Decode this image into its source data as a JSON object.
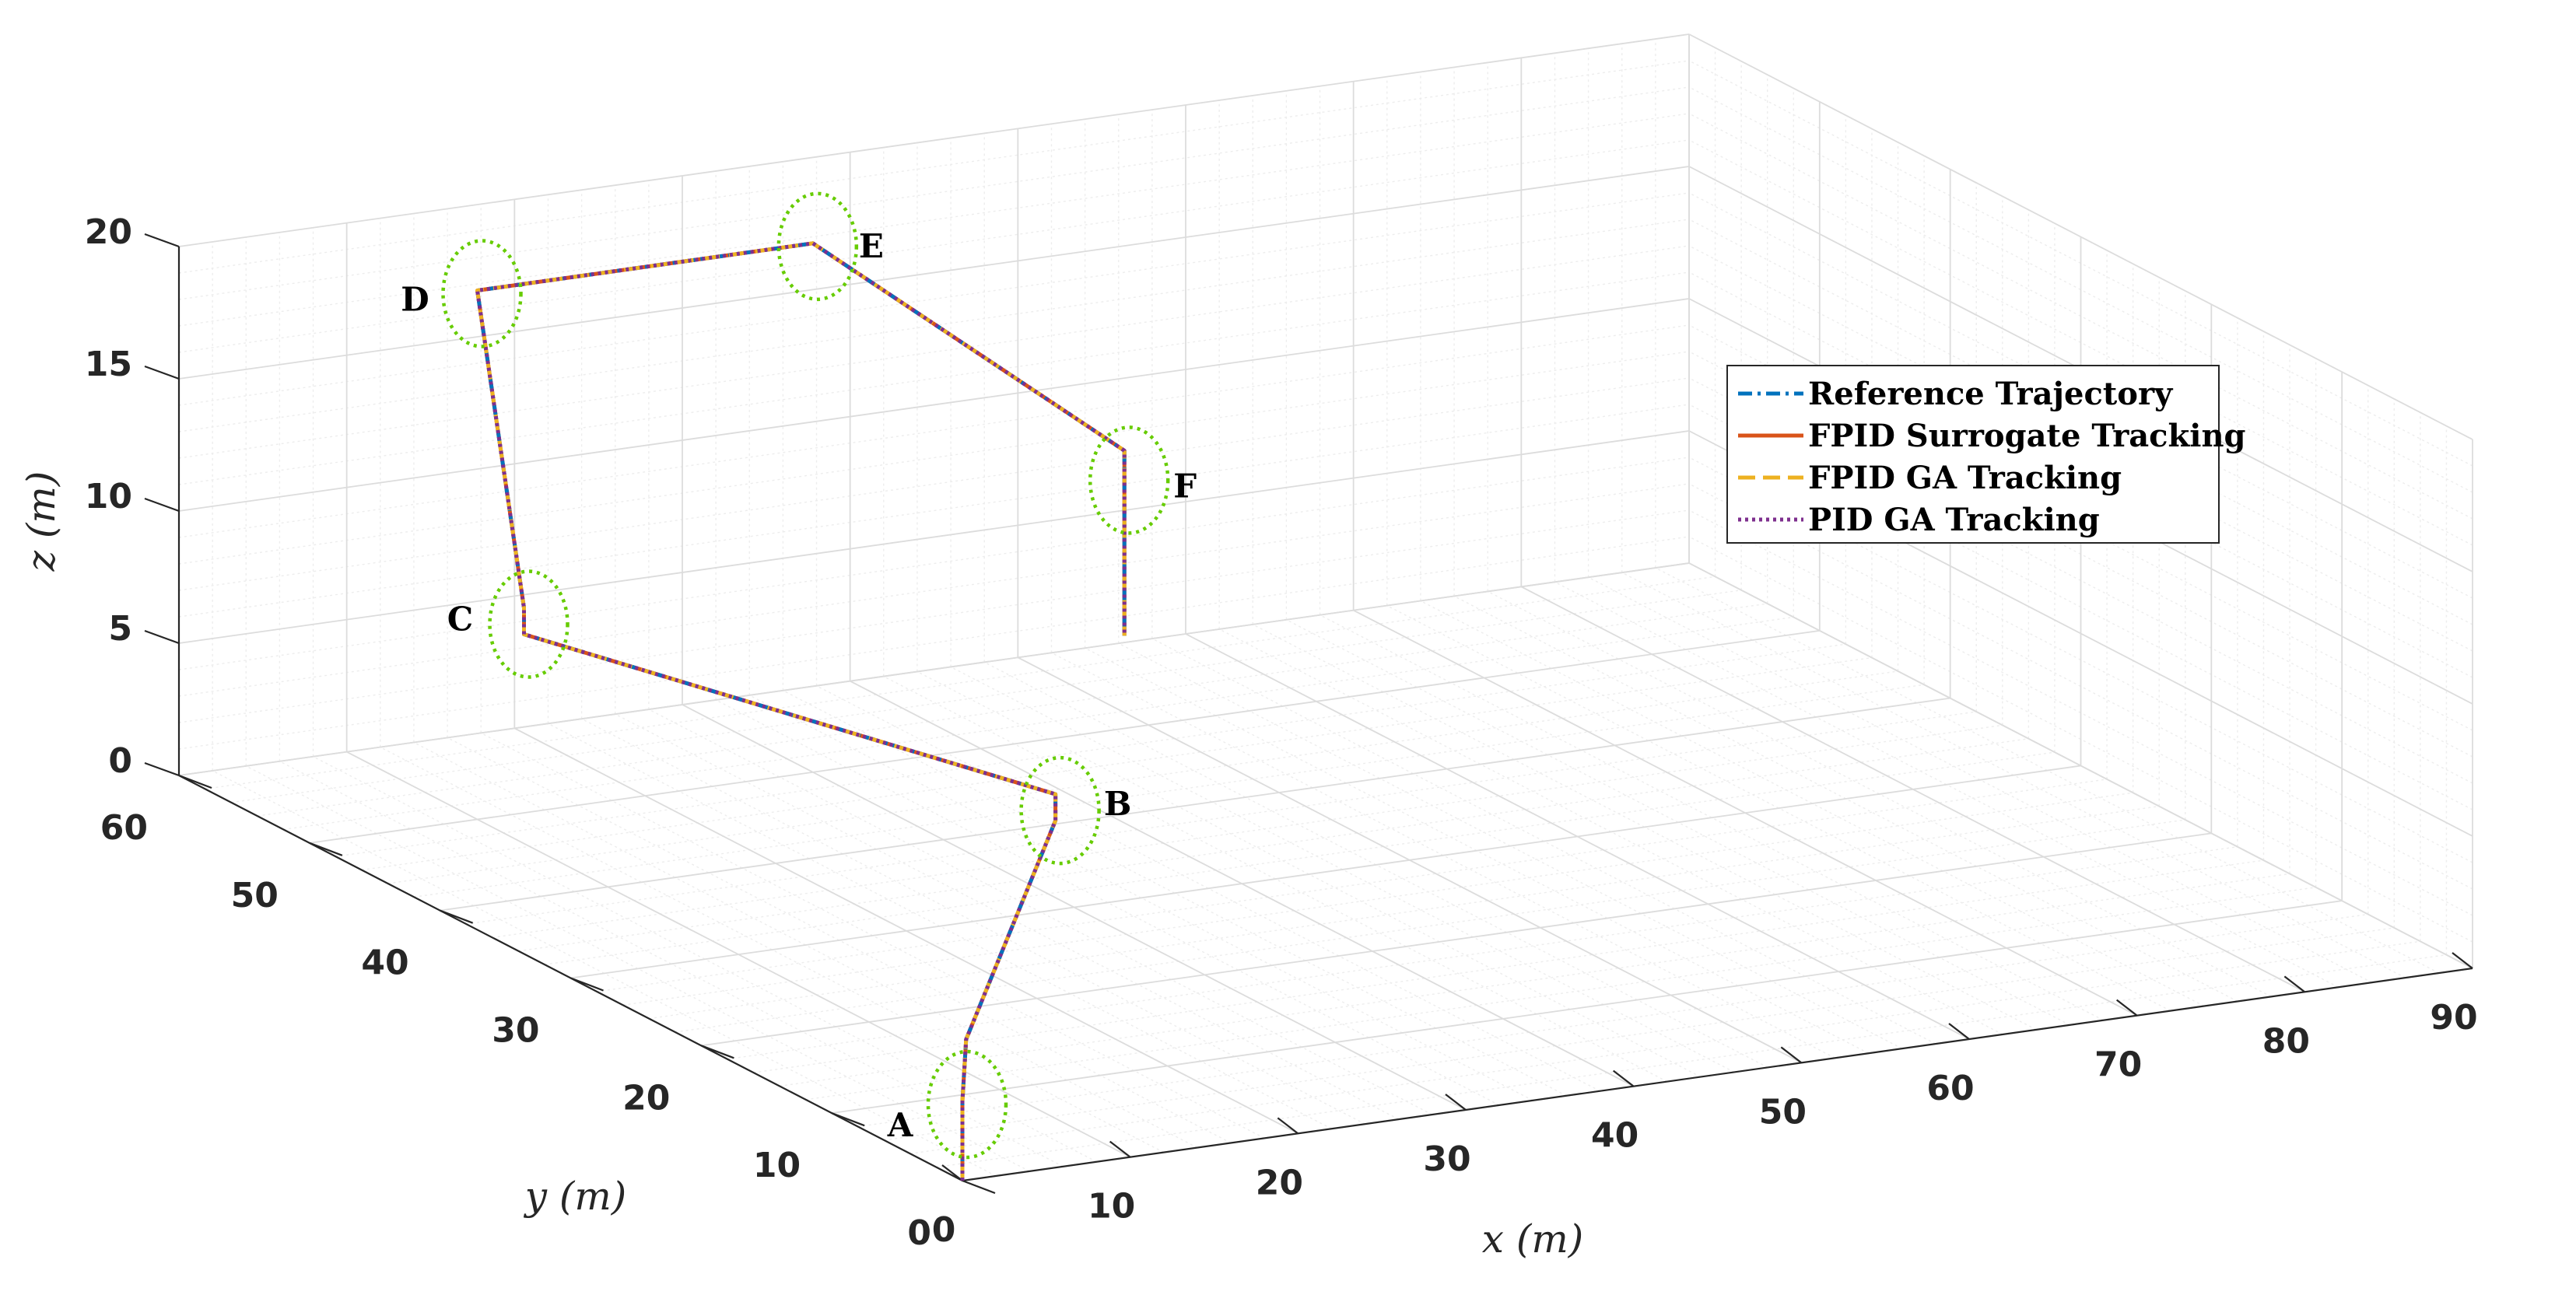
{
  "chart_data": {
    "type": "line",
    "projection": "3d",
    "xlabel": "x (m)",
    "ylabel": "y (m)",
    "zlabel": "z (m)",
    "xlim": [
      0,
      90
    ],
    "ylim": [
      0,
      60
    ],
    "zlim": [
      0,
      20
    ],
    "x_ticks": [
      "0",
      "10",
      "20",
      "30",
      "40",
      "50",
      "60",
      "70",
      "80",
      "90"
    ],
    "y_ticks": [
      "0",
      "10",
      "20",
      "30",
      "40",
      "50",
      "60"
    ],
    "z_ticks": [
      "0",
      "5",
      "10",
      "15",
      "20"
    ],
    "grid": true,
    "minor_grid": true,
    "legend_position": "right",
    "series": [
      {
        "name": "Reference Trajectory",
        "color": "#0072BD",
        "style": "dash-dot"
      },
      {
        "name": "FPID Surrogate Tracking",
        "color": "#D95319",
        "style": "solid"
      },
      {
        "name": "FPID GA Tracking",
        "color": "#EDB120",
        "style": "dashed"
      },
      {
        "name": "PID GA Tracking",
        "color": "#7E2F8E",
        "style": "dotted"
      }
    ],
    "trajectory": {
      "x": [
        0,
        0,
        1,
        25,
        25,
        5,
        5,
        10,
        30,
        33,
        33,
        33
      ],
      "y": [
        0,
        0,
        1,
        25,
        25,
        40,
        40,
        50,
        50,
        30,
        30,
        30
      ],
      "z": [
        0,
        3,
        5,
        5,
        6,
        10,
        11,
        20,
        20,
        17,
        15,
        10
      ]
    },
    "annotations": [
      {
        "label": "A",
        "x": 0,
        "y": 0,
        "z": 3
      },
      {
        "label": "B",
        "x": 25,
        "y": 25,
        "z": 5.5
      },
      {
        "label": "C",
        "x": 5,
        "y": 40,
        "z": 10.5
      },
      {
        "label": "D",
        "x": 10,
        "y": 50,
        "z": 20
      },
      {
        "label": "E",
        "x": 30,
        "y": 50,
        "z": 20
      },
      {
        "label": "F",
        "x": 33,
        "y": 30,
        "z": 16
      }
    ]
  }
}
